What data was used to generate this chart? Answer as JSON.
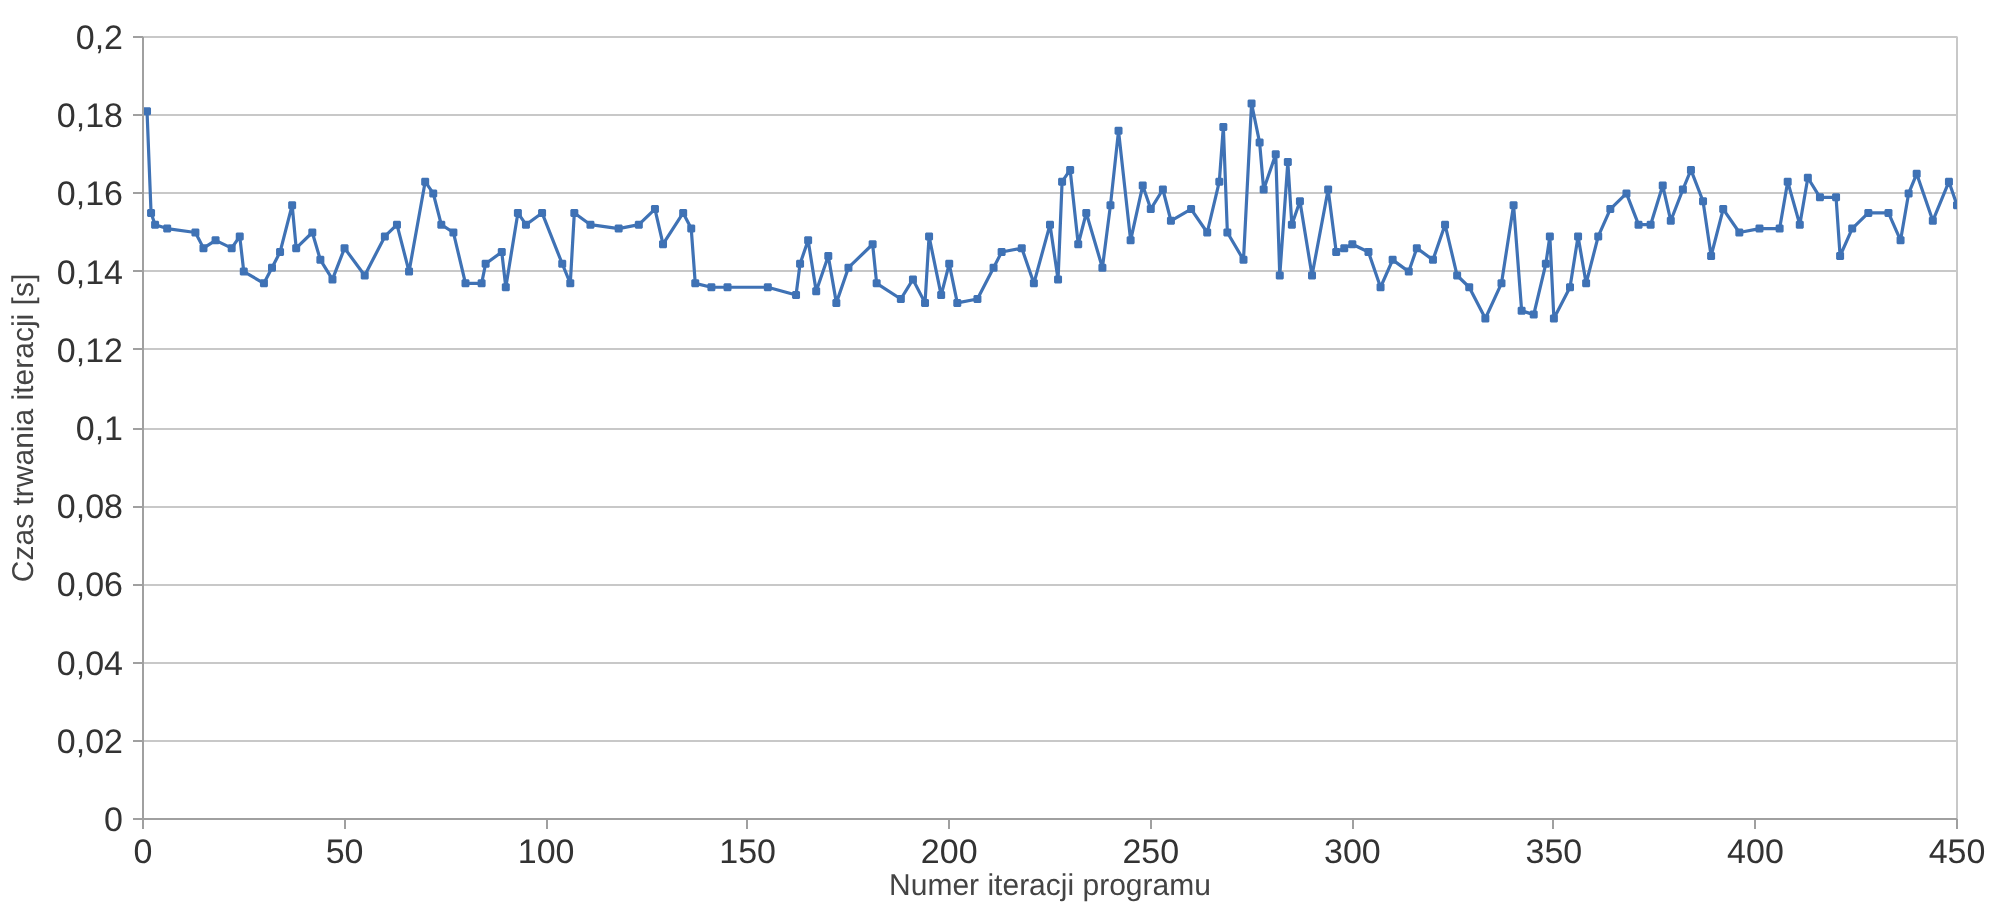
{
  "chart_data": {
    "type": "line",
    "xlabel": "Numer iteracji programu",
    "ylabel": "Czas trwania iteracji [s]",
    "x": [
      1,
      2,
      3,
      6,
      13,
      15,
      18,
      22,
      24,
      25,
      30,
      32,
      34,
      37,
      38,
      42,
      44,
      47,
      50,
      55,
      60,
      63,
      66,
      70,
      72,
      74,
      77,
      80,
      84,
      85,
      89,
      90,
      93,
      95,
      99,
      104,
      106,
      107,
      111,
      118,
      123,
      127,
      129,
      134,
      136,
      137,
      141,
      145,
      155,
      162,
      163,
      165,
      167,
      170,
      172,
      175,
      181,
      182,
      188,
      191,
      194,
      195,
      198,
      200,
      202,
      207,
      211,
      213,
      218,
      221,
      225,
      227,
      228,
      230,
      232,
      234,
      238,
      240,
      242,
      245,
      248,
      250,
      253,
      255,
      260,
      264,
      267,
      268,
      269,
      273,
      275,
      277,
      278,
      281,
      282,
      284,
      285,
      287,
      290,
      294,
      296,
      298,
      300,
      304,
      307,
      310,
      314,
      316,
      320,
      323,
      326,
      329,
      333,
      337,
      340,
      342,
      345,
      348,
      349,
      350,
      354,
      356,
      358,
      361,
      364,
      368,
      371,
      374,
      377,
      379,
      382,
      384,
      387,
      389,
      392,
      396,
      401,
      406,
      408,
      411,
      413,
      416,
      420,
      421,
      424,
      428,
      433,
      436,
      438,
      440,
      444,
      448,
      450
    ],
    "series": [
      {
        "color": "#3f72b5",
        "values": [
          0.181,
          0.155,
          0.152,
          0.151,
          0.15,
          0.146,
          0.148,
          0.146,
          0.149,
          0.14,
          0.137,
          0.141,
          0.145,
          0.157,
          0.146,
          0.15,
          0.143,
          0.138,
          0.146,
          0.139,
          0.149,
          0.152,
          0.14,
          0.163,
          0.16,
          0.152,
          0.15,
          0.137,
          0.137,
          0.142,
          0.145,
          0.136,
          0.155,
          0.152,
          0.155,
          0.142,
          0.137,
          0.155,
          0.152,
          0.151,
          0.152,
          0.156,
          0.147,
          0.155,
          0.151,
          0.137,
          0.136,
          0.136,
          0.136,
          0.134,
          0.142,
          0.148,
          0.135,
          0.144,
          0.132,
          0.141,
          0.147,
          0.137,
          0.133,
          0.138,
          0.132,
          0.149,
          0.134,
          0.142,
          0.132,
          0.133,
          0.141,
          0.145,
          0.146,
          0.137,
          0.152,
          0.138,
          0.163,
          0.166,
          0.147,
          0.155,
          0.141,
          0.157,
          0.176,
          0.148,
          0.162,
          0.156,
          0.161,
          0.153,
          0.156,
          0.15,
          0.163,
          0.177,
          0.15,
          0.143,
          0.183,
          0.173,
          0.161,
          0.17,
          0.139,
          0.168,
          0.152,
          0.158,
          0.139,
          0.161,
          0.145,
          0.146,
          0.147,
          0.145,
          0.136,
          0.143,
          0.14,
          0.146,
          0.143,
          0.152,
          0.139,
          0.136,
          0.128,
          0.137,
          0.157,
          0.13,
          0.129,
          0.142,
          0.149,
          0.128,
          0.136,
          0.149,
          0.137,
          0.149,
          0.156,
          0.16,
          0.152,
          0.152,
          0.162,
          0.153,
          0.161,
          0.166,
          0.158,
          0.144,
          0.156,
          0.15,
          0.151,
          0.151,
          0.163,
          0.152,
          0.164,
          0.159,
          0.159,
          0.144,
          0.151,
          0.155,
          0.155,
          0.148,
          0.16,
          0.165,
          0.153,
          0.163,
          0.157
        ]
      }
    ],
    "xlim": [
      0,
      450
    ],
    "xticks": [
      0,
      50,
      100,
      150,
      200,
      250,
      300,
      350,
      400,
      450
    ],
    "ylim": [
      0,
      0.2
    ],
    "yticks": [
      {
        "value": 0,
        "label": "0"
      },
      {
        "value": 0.02,
        "label": "0,02"
      },
      {
        "value": 0.04,
        "label": "0,04"
      },
      {
        "value": 0.06,
        "label": "0,06"
      },
      {
        "value": 0.08,
        "label": "0,08"
      },
      {
        "value": 0.1,
        "label": "0,1"
      },
      {
        "value": 0.12,
        "label": "0,12"
      },
      {
        "value": 0.14,
        "label": "0,14"
      },
      {
        "value": 0.16,
        "label": "0,16"
      },
      {
        "value": 0.18,
        "label": "0,18"
      },
      {
        "value": 0.2,
        "label": "0,2"
      }
    ],
    "grid": "y",
    "marker": "square",
    "line_style": "solid"
  }
}
